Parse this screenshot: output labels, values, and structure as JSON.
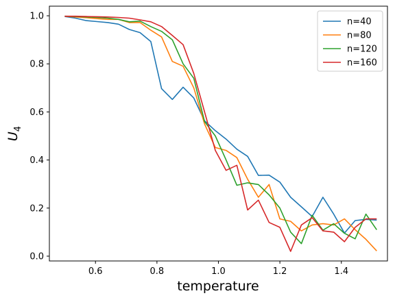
{
  "chart_data": {
    "type": "line",
    "xlabel": "temperature",
    "ylabel": "U",
    "ylabel_subscript": "4",
    "xlim": [
      0.45,
      1.55
    ],
    "ylim": [
      -0.02,
      1.04
    ],
    "xticks": [
      0.6,
      0.8,
      1.0,
      1.2,
      1.4
    ],
    "xtick_labels": [
      "0.6",
      "0.8",
      "1.0",
      "1.2",
      "1.4"
    ],
    "yticks": [
      0.0,
      0.2,
      0.4,
      0.6,
      0.8,
      1.0
    ],
    "ytick_labels": [
      "0.0",
      "0.2",
      "0.4",
      "0.6",
      "0.8",
      "1.0"
    ],
    "grid": false,
    "legend_position": "top-right",
    "x": [
      0.5,
      0.535,
      0.57,
      0.605,
      0.64,
      0.675,
      0.71,
      0.745,
      0.78,
      0.815,
      0.85,
      0.885,
      0.92,
      0.955,
      0.99,
      1.025,
      1.06,
      1.095,
      1.13,
      1.165,
      1.2,
      1.235,
      1.27,
      1.305,
      1.34,
      1.375,
      1.41,
      1.445,
      1.48,
      1.515
    ],
    "series": [
      {
        "name": "n=40",
        "color": "#1f77b4",
        "values": [
          0.997,
          0.99,
          0.98,
          0.976,
          0.972,
          0.965,
          0.943,
          0.93,
          0.893,
          0.697,
          0.652,
          0.703,
          0.658,
          0.563,
          0.522,
          0.487,
          0.445,
          0.415,
          0.336,
          0.337,
          0.308,
          0.245,
          0.205,
          0.165,
          0.245,
          0.175,
          0.096,
          0.148,
          0.153,
          0.15
        ]
      },
      {
        "name": "n=80",
        "color": "#ff7f0e",
        "values": [
          0.998,
          0.995,
          0.992,
          0.988,
          0.985,
          0.985,
          0.972,
          0.972,
          0.94,
          0.912,
          0.81,
          0.79,
          0.7,
          0.55,
          0.452,
          0.44,
          0.41,
          0.32,
          0.245,
          0.298,
          0.155,
          0.145,
          0.105,
          0.13,
          0.135,
          0.13,
          0.155,
          0.11,
          0.07,
          0.022
        ]
      },
      {
        "name": "n=120",
        "color": "#2ca02c",
        "values": [
          0.998,
          0.997,
          0.995,
          0.993,
          0.99,
          0.985,
          0.975,
          0.978,
          0.955,
          0.935,
          0.9,
          0.8,
          0.74,
          0.56,
          0.5,
          0.4,
          0.295,
          0.305,
          0.298,
          0.255,
          0.2,
          0.1,
          0.052,
          0.17,
          0.108,
          0.135,
          0.095,
          0.072,
          0.175,
          0.11
        ]
      },
      {
        "name": "n=160",
        "color": "#d62728",
        "values": [
          0.998,
          0.998,
          0.997,
          0.996,
          0.995,
          0.993,
          0.99,
          0.983,
          0.975,
          0.955,
          0.918,
          0.88,
          0.76,
          0.6,
          0.44,
          0.357,
          0.378,
          0.192,
          0.233,
          0.14,
          0.12,
          0.02,
          0.13,
          0.16,
          0.105,
          0.1,
          0.06,
          0.12,
          0.155,
          0.155
        ]
      }
    ]
  }
}
